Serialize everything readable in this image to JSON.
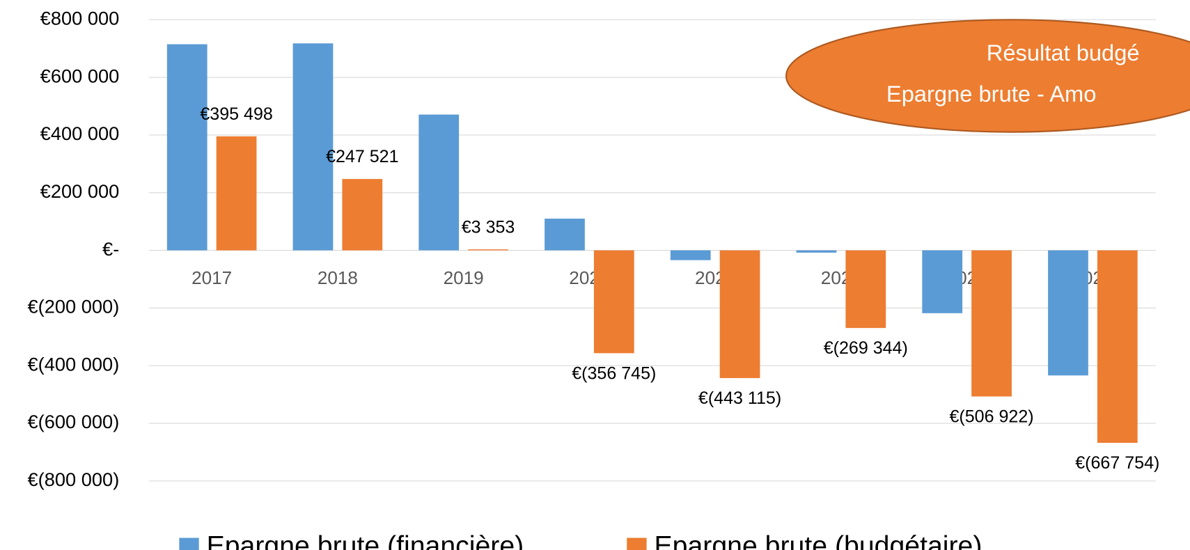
{
  "chart_data": {
    "type": "bar",
    "categories": [
      "2017",
      "2018",
      "2019",
      "2020",
      "2021",
      "2022",
      "2023",
      "2024"
    ],
    "series": [
      {
        "name": "Epargne brute (financière)",
        "color": "#5b9bd5",
        "values": [
          715000,
          718000,
          471000,
          110000,
          -34000,
          -8000,
          -218000,
          -434000
        ]
      },
      {
        "name": "Epargne brute (budgétaire)",
        "color": "#ed7d31",
        "values": [
          395498,
          247521,
          3353,
          -356745,
          -443115,
          -269344,
          -506922,
          -667754
        ],
        "value_labels": [
          "€395 498",
          "€247 521",
          "€3 353",
          "€(356 745)",
          "€(443 115)",
          "€(269 344)",
          "€(506 922)",
          "€(667 754)"
        ]
      }
    ],
    "ylim": [
      -800000,
      800000
    ],
    "yticks": [
      {
        "value": 800000,
        "label": "€800 000"
      },
      {
        "value": 600000,
        "label": "€600 000"
      },
      {
        "value": 400000,
        "label": "€400 000"
      },
      {
        "value": 200000,
        "label": "€200 000"
      },
      {
        "value": 0,
        "label": "€-"
      },
      {
        "value": -200000,
        "label": "€(200 000)"
      },
      {
        "value": -400000,
        "label": "€(400 000)"
      },
      {
        "value": -600000,
        "label": "€(600 000)"
      },
      {
        "value": -800000,
        "label": "€(800 000)"
      }
    ],
    "grid": true,
    "legend": "bottom",
    "annotation": {
      "lines": [
        "Résultat budgé",
        "Epargne brute - Amo"
      ],
      "color": "#ed7d31"
    }
  }
}
